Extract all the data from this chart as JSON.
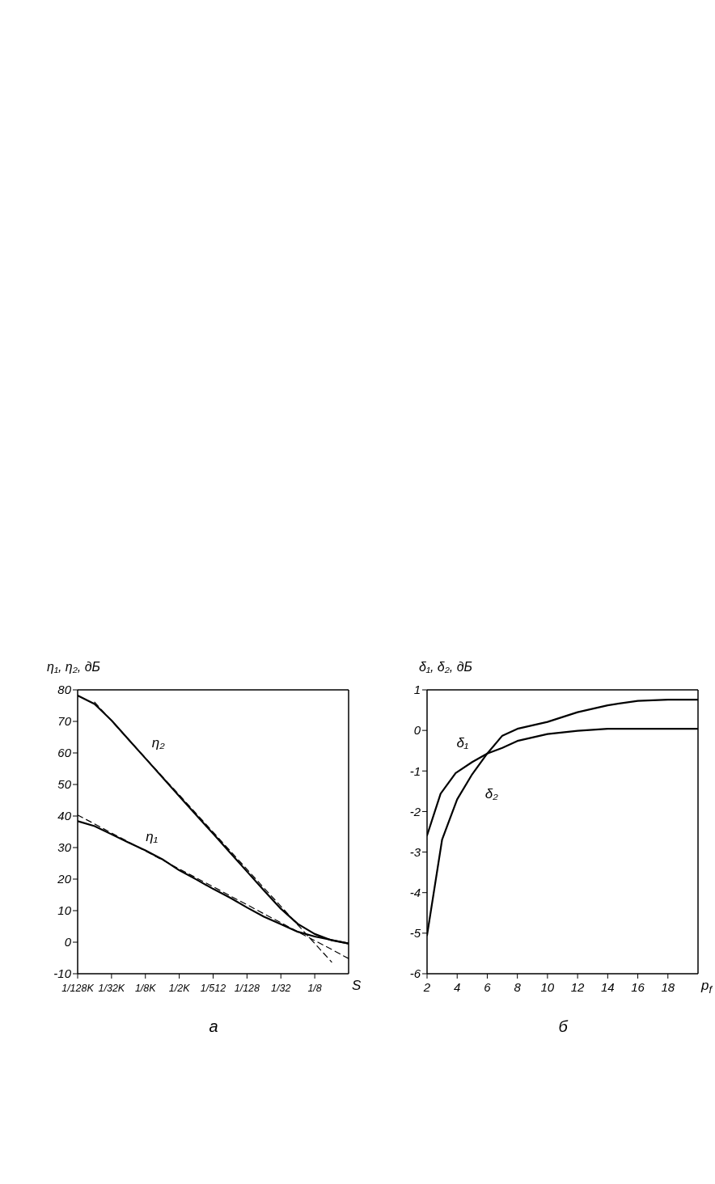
{
  "chart_data": [
    {
      "type": "line",
      "ylabel": "η₁, η₂, дБ",
      "xlabel": "S",
      "categories": [
        "1/128K",
        null,
        "1/32K",
        null,
        "1/8K",
        null,
        "1/2K",
        null,
        "1/512",
        null,
        "1/128",
        null,
        "1/32",
        null,
        "1/8",
        null,
        null
      ],
      "ylim": [
        -10,
        80
      ],
      "yticks": [
        -10,
        0,
        10,
        20,
        30,
        40,
        50,
        60,
        70,
        80
      ],
      "marker": "none",
      "annotations": [
        "а"
      ],
      "series": [
        {
          "name": "η₂",
          "color": "#000000",
          "values": [
            78.2,
            75.5,
            70.3,
            64.3,
            58.3,
            52.3,
            46.3,
            40.3,
            34.4,
            28.4,
            22.4,
            16.4,
            10.6,
            5.8,
            2.6,
            0.6,
            -0.4
          ]
        },
        {
          "name": "η₁",
          "color": "#000000",
          "values": [
            38.4,
            36.8,
            34.2,
            31.6,
            29.1,
            26.3,
            22.8,
            19.9,
            16.9,
            14.1,
            11.0,
            8.1,
            5.7,
            3.3,
            1.8,
            0.7,
            -0.4
          ]
        },
        {
          "color": "#000000",
          "line_style": "dashed",
          "values": [
            null,
            76.1,
            70.2,
            64.3,
            58.4,
            52.5,
            46.7,
            40.8,
            34.9,
            29.0,
            23.1,
            17.2,
            11.4,
            5.5,
            -0.4,
            -6.3,
            null
          ]
        },
        {
          "color": "#000000",
          "line_style": "dashed",
          "values": [
            40.3,
            37.5,
            34.6,
            31.8,
            28.9,
            26.1,
            23.2,
            20.4,
            17.6,
            14.7,
            11.9,
            9.0,
            6.2,
            3.3,
            0.5,
            -2.3,
            -5.2
          ]
        }
      ]
    },
    {
      "type": "line",
      "ylabel": "δ₁, δ₂, дБ",
      "xlabel": "p$_{f}$",
      "xlim": [
        2,
        20
      ],
      "xticks": [
        2,
        4,
        6,
        8,
        10,
        12,
        14,
        16,
        18
      ],
      "ylim": [
        -6,
        1
      ],
      "yticks": [
        -6,
        -5,
        -4,
        -3,
        -2,
        -1,
        0,
        1
      ],
      "marker": "none",
      "annotations": [
        "б"
      ],
      "series": [
        {
          "name": "δ₁",
          "color": "#000000",
          "x": [
            2,
            2.9,
            3.9,
            5,
            6,
            7,
            8,
            10,
            12,
            14,
            20
          ],
          "values": [
            -2.59,
            -1.56,
            -1.05,
            -0.78,
            -0.57,
            -0.43,
            -0.26,
            -0.09,
            -0.01,
            0.04,
            0.04
          ]
        },
        {
          "name": "δ₂",
          "color": "#000000",
          "x": [
            2,
            3,
            4,
            5,
            6,
            7,
            8,
            10,
            12,
            14,
            16,
            18,
            20
          ],
          "values": [
            -5.05,
            -2.69,
            -1.7,
            -1.08,
            -0.57,
            -0.13,
            0.04,
            0.21,
            0.45,
            0.62,
            0.73,
            0.76,
            0.76
          ]
        }
      ]
    }
  ]
}
